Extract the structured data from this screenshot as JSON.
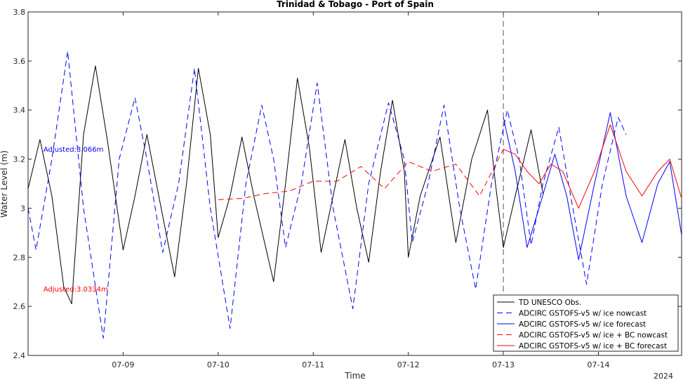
{
  "chart_data": {
    "type": "line",
    "title": "Trinidad & Tobago - Port of Spain",
    "xlabel": "Time",
    "ylabel": "Water Level (m)",
    "year_label": "2024",
    "ylim": [
      2.4,
      3.8
    ],
    "yticks": [
      2.4,
      2.6,
      2.8,
      3,
      3.2,
      3.4,
      3.6,
      3.8
    ],
    "ytick_labels": [
      "2.4",
      "2.6",
      "2.8",
      "3",
      "3.2",
      "3.4",
      "3.6",
      "3.8"
    ],
    "xlim": [
      "2024-07-08 00:00",
      "2024-07-14 21:00"
    ],
    "xticks": [
      "07-09",
      "07-10",
      "07-11",
      "07-12",
      "07-13",
      "07-14"
    ],
    "nowcast_forecast_divider": "2024-07-13 00:00",
    "grid": false,
    "legend_position": "bottom-right",
    "annotations": [
      {
        "text": "Adjusted:3.066m",
        "color": "#0000ff",
        "x": "2024-07-08 06:00",
        "y": 3.23
      },
      {
        "text": "Adjusted:3.0334m",
        "color": "#ff0000",
        "x": "2024-07-08 06:00",
        "y": 2.66
      }
    ],
    "series": [
      {
        "name": "TD UNESCO Obs.",
        "color": "#000000",
        "dash": "solid",
        "points": [
          [
            "2024-07-08 00:00",
            3.08
          ],
          [
            "2024-07-08 03:00",
            3.28
          ],
          [
            "2024-07-08 06:00",
            3.05
          ],
          [
            "2024-07-08 09:00",
            2.68
          ],
          [
            "2024-07-08 11:00",
            2.61
          ],
          [
            "2024-07-08 14:00",
            3.3
          ],
          [
            "2024-07-08 17:00",
            3.58
          ],
          [
            "2024-07-08 20:00",
            3.28
          ],
          [
            "2024-07-09 00:00",
            2.83
          ],
          [
            "2024-07-09 03:00",
            3.05
          ],
          [
            "2024-07-09 06:00",
            3.3
          ],
          [
            "2024-07-09 09:00",
            3.05
          ],
          [
            "2024-07-09 13:00",
            2.72
          ],
          [
            "2024-07-09 16:00",
            3.1
          ],
          [
            "2024-07-09 19:00",
            3.57
          ],
          [
            "2024-07-09 22:00",
            3.3
          ],
          [
            "2024-07-10 00:00",
            2.88
          ],
          [
            "2024-07-10 03:00",
            3.05
          ],
          [
            "2024-07-10 06:00",
            3.29
          ],
          [
            "2024-07-10 09:00",
            3.05
          ],
          [
            "2024-07-10 14:00",
            2.7
          ],
          [
            "2024-07-10 17:00",
            3.1
          ],
          [
            "2024-07-10 20:00",
            3.53
          ],
          [
            "2024-07-10 23:00",
            3.25
          ],
          [
            "2024-07-11 02:00",
            2.82
          ],
          [
            "2024-07-11 05:00",
            3.05
          ],
          [
            "2024-07-11 08:00",
            3.28
          ],
          [
            "2024-07-11 11:00",
            3.0
          ],
          [
            "2024-07-11 14:00",
            2.78
          ],
          [
            "2024-07-11 17:00",
            3.15
          ],
          [
            "2024-07-11 20:00",
            3.44
          ],
          [
            "2024-07-11 23:00",
            3.15
          ],
          [
            "2024-07-12 00:00",
            2.8
          ],
          [
            "2024-07-12 03:00",
            3.05
          ],
          [
            "2024-07-12 08:00",
            3.29
          ],
          [
            "2024-07-12 12:00",
            2.86
          ],
          [
            "2024-07-12 16:00",
            3.2
          ],
          [
            "2024-07-12 20:00",
            3.4
          ],
          [
            "2024-07-12 22:00",
            3.1
          ],
          [
            "2024-07-13 00:00",
            2.84
          ],
          [
            "2024-07-13 03:00",
            3.05
          ],
          [
            "2024-07-13 07:00",
            3.32
          ],
          [
            "2024-07-13 10:00",
            3.06
          ]
        ]
      },
      {
        "name": "ADCIRC GSTOFS-v5 w/ ice nowcast",
        "color": "#0000ff",
        "dash": "dashed",
        "points": [
          [
            "2024-07-08 00:00",
            3.0
          ],
          [
            "2024-07-08 02:00",
            2.83
          ],
          [
            "2024-07-08 06:00",
            3.2
          ],
          [
            "2024-07-08 10:00",
            3.64
          ],
          [
            "2024-07-08 14:00",
            3.0
          ],
          [
            "2024-07-08 19:00",
            2.47
          ],
          [
            "2024-07-08 23:00",
            3.2
          ],
          [
            "2024-07-09 03:00",
            3.45
          ],
          [
            "2024-07-09 06:00",
            3.2
          ],
          [
            "2024-07-09 10:00",
            2.82
          ],
          [
            "2024-07-09 14:00",
            3.1
          ],
          [
            "2024-07-09 18:00",
            3.57
          ],
          [
            "2024-07-09 22:00",
            3.0
          ],
          [
            "2024-07-10 03:00",
            2.51
          ],
          [
            "2024-07-10 07:00",
            3.1
          ],
          [
            "2024-07-10 11:00",
            3.42
          ],
          [
            "2024-07-10 14:00",
            3.2
          ],
          [
            "2024-07-10 17:00",
            2.84
          ],
          [
            "2024-07-10 21:00",
            3.1
          ],
          [
            "2024-07-11 01:00",
            3.51
          ],
          [
            "2024-07-11 05:00",
            3.0
          ],
          [
            "2024-07-11 10:00",
            2.59
          ],
          [
            "2024-07-11 14:00",
            3.1
          ],
          [
            "2024-07-11 19:00",
            3.43
          ],
          [
            "2024-07-11 23:00",
            3.2
          ],
          [
            "2024-07-12 01:00",
            2.86
          ],
          [
            "2024-07-12 05:00",
            3.1
          ],
          [
            "2024-07-12 09:00",
            3.42
          ],
          [
            "2024-07-12 13:00",
            3.0
          ],
          [
            "2024-07-12 17:00",
            2.67
          ],
          [
            "2024-07-12 21:00",
            3.1
          ],
          [
            "2024-07-13 01:00",
            3.4
          ],
          [
            "2024-07-13 04:00",
            3.2
          ],
          [
            "2024-07-13 07:00",
            2.85
          ],
          [
            "2024-07-13 10:00",
            3.1
          ],
          [
            "2024-07-13 14:00",
            3.33
          ],
          [
            "2024-07-13 17:00",
            3.05
          ],
          [
            "2024-07-13 21:00",
            2.69
          ],
          [
            "2024-07-14 01:00",
            3.1
          ],
          [
            "2024-07-14 05:00",
            3.37
          ],
          [
            "2024-07-14 07:00",
            3.3
          ]
        ]
      },
      {
        "name": "ADCIRC GSTOFS-v5 w/ ice forecast",
        "color": "#0000ff",
        "dash": "solid",
        "points": [
          [
            "2024-07-13 00:00",
            3.37
          ],
          [
            "2024-07-13 03:00",
            3.15
          ],
          [
            "2024-07-13 06:00",
            2.84
          ],
          [
            "2024-07-13 09:00",
            3.0
          ],
          [
            "2024-07-13 13:00",
            3.22
          ],
          [
            "2024-07-13 16:00",
            3.05
          ],
          [
            "2024-07-13 19:00",
            2.79
          ],
          [
            "2024-07-13 23:00",
            3.1
          ],
          [
            "2024-07-14 03:00",
            3.39
          ],
          [
            "2024-07-14 07:00",
            3.05
          ],
          [
            "2024-07-14 11:00",
            2.86
          ],
          [
            "2024-07-14 15:00",
            3.1
          ],
          [
            "2024-07-14 18:00",
            3.19
          ],
          [
            "2024-07-14 21:00",
            2.89
          ]
        ]
      },
      {
        "name": "ADCIRC GSTOFS-v5 w/ ice + BC nowcast",
        "color": "#ff0000",
        "dash": "dashed",
        "points": [
          [
            "2024-07-10 00:00",
            3.035
          ],
          [
            "2024-07-10 06:00",
            3.04
          ],
          [
            "2024-07-10 12:00",
            3.06
          ],
          [
            "2024-07-10 18:00",
            3.07
          ],
          [
            "2024-07-11 00:00",
            3.11
          ],
          [
            "2024-07-11 06:00",
            3.11
          ],
          [
            "2024-07-11 12:00",
            3.17
          ],
          [
            "2024-07-11 18:00",
            3.08
          ],
          [
            "2024-07-12 00:00",
            3.19
          ],
          [
            "2024-07-12 06:00",
            3.15
          ],
          [
            "2024-07-12 12:00",
            3.18
          ],
          [
            "2024-07-12 18:00",
            3.05
          ],
          [
            "2024-07-13 00:00",
            3.24
          ]
        ]
      },
      {
        "name": "ADCIRC GSTOFS-v5 w/ ice + BC forecast",
        "color": "#ff0000",
        "dash": "solid",
        "points": [
          [
            "2024-07-13 00:00",
            3.24
          ],
          [
            "2024-07-13 03:00",
            3.22
          ],
          [
            "2024-07-13 06:00",
            3.15
          ],
          [
            "2024-07-13 09:00",
            3.1
          ],
          [
            "2024-07-13 12:00",
            3.18
          ],
          [
            "2024-07-13 15:00",
            3.15
          ],
          [
            "2024-07-13 19:00",
            3.0
          ],
          [
            "2024-07-13 23:00",
            3.15
          ],
          [
            "2024-07-14 03:00",
            3.34
          ],
          [
            "2024-07-14 07:00",
            3.15
          ],
          [
            "2024-07-14 11:00",
            3.05
          ],
          [
            "2024-07-14 15:00",
            3.15
          ],
          [
            "2024-07-14 18:00",
            3.2
          ],
          [
            "2024-07-14 21:00",
            3.04
          ]
        ]
      }
    ]
  }
}
